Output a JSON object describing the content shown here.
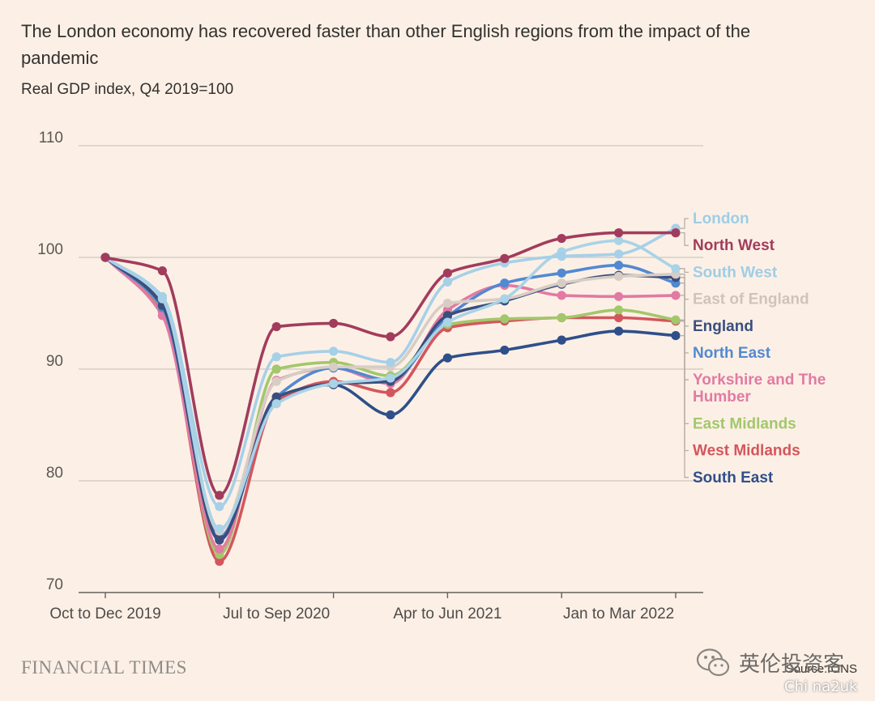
{
  "chart_data": {
    "type": "line",
    "title": "The London economy has recovered faster than other English regions from the impact of the pandemic",
    "subtitle": "Real GDP index, Q4 2019=100",
    "x_ticks": [
      "Oct to Dec 2019",
      "Jul to Sep 2020",
      "Apr to Jun 2021",
      "Jan to Mar 2022"
    ],
    "y_ticks": [
      70,
      80,
      90,
      100,
      110
    ],
    "ylim": [
      70,
      110
    ],
    "grid": true,
    "legend_placement": "right",
    "num_quarters": 11,
    "series": [
      {
        "name": "South East",
        "color": "#2f4f8a",
        "values": [
          100,
          95.8,
          74.7,
          87.5,
          88.6,
          85.9,
          91.0,
          91.7,
          92.6,
          93.4,
          93.0
        ]
      },
      {
        "name": "West Midlands",
        "color": "#d4565c",
        "values": [
          100,
          95.2,
          72.8,
          87.1,
          88.9,
          87.9,
          93.7,
          94.3,
          94.6,
          94.6,
          94.3
        ]
      },
      {
        "name": "East Midlands",
        "color": "#a3c76b",
        "values": [
          100,
          95.4,
          73.4,
          90.0,
          90.6,
          89.4,
          94.0,
          94.5,
          94.6,
          95.3,
          94.4
        ]
      },
      {
        "name": "Yorkshire and The Humber",
        "color": "#e27aa3",
        "values": [
          100,
          94.8,
          73.9,
          89.0,
          90.1,
          88.7,
          95.3,
          97.5,
          96.6,
          96.5,
          96.6
        ]
      },
      {
        "name": "North East",
        "color": "#5289d1",
        "values": [
          100,
          95.5,
          75.0,
          87.5,
          90.1,
          89.0,
          94.7,
          97.7,
          98.6,
          99.3,
          97.7
        ]
      },
      {
        "name": "England",
        "color": "#3a4f7e",
        "values": [
          100,
          95.7,
          74.8,
          87.5,
          88.7,
          88.9,
          94.8,
          96.1,
          97.6,
          98.4,
          98.2
        ]
      },
      {
        "name": "East of England",
        "color": "#d8cdc5",
        "values": [
          100,
          96.3,
          75.5,
          88.9,
          90.2,
          90.2,
          95.9,
          96.3,
          97.7,
          98.3,
          98.5
        ]
      },
      {
        "name": "South West",
        "color": "#a9d3e7",
        "values": [
          100,
          96.3,
          75.7,
          86.9,
          88.7,
          89.2,
          94.2,
          96.3,
          100.5,
          101.5,
          99.0
        ]
      },
      {
        "name": "London",
        "color": "#a6d0e8",
        "values": [
          100,
          96.5,
          77.7,
          91.1,
          91.6,
          90.6,
          97.8,
          99.5,
          100.1,
          100.3,
          102.6
        ]
      },
      {
        "name": "North West",
        "color": "#a23c5c",
        "values": [
          100,
          98.8,
          78.7,
          93.8,
          94.1,
          92.9,
          98.6,
          99.9,
          101.7,
          102.2,
          102.2
        ]
      }
    ],
    "legend_order": [
      "London",
      "North West",
      "South West",
      "East of England",
      "England",
      "North East",
      "Yorkshire and The Humber",
      "East Midlands",
      "West Midlands",
      "South East"
    ],
    "legend_labels": [
      "London",
      "North West",
      "South West",
      "East of England",
      "England",
      "North East",
      "Yorkshire and The\nHumber",
      "East Midlands",
      "West Midlands",
      "South East"
    ]
  },
  "branding": {
    "publisher": "FINANCIAL TIMES",
    "source": "Source: ONS"
  },
  "watermark": {
    "text": "英伦投资客",
    "sub": "Chi na2uk"
  },
  "colors": {
    "background": "#fcf0e6",
    "gridline": "#cfc6be",
    "axis": "#66605c",
    "text": "#33302e"
  }
}
